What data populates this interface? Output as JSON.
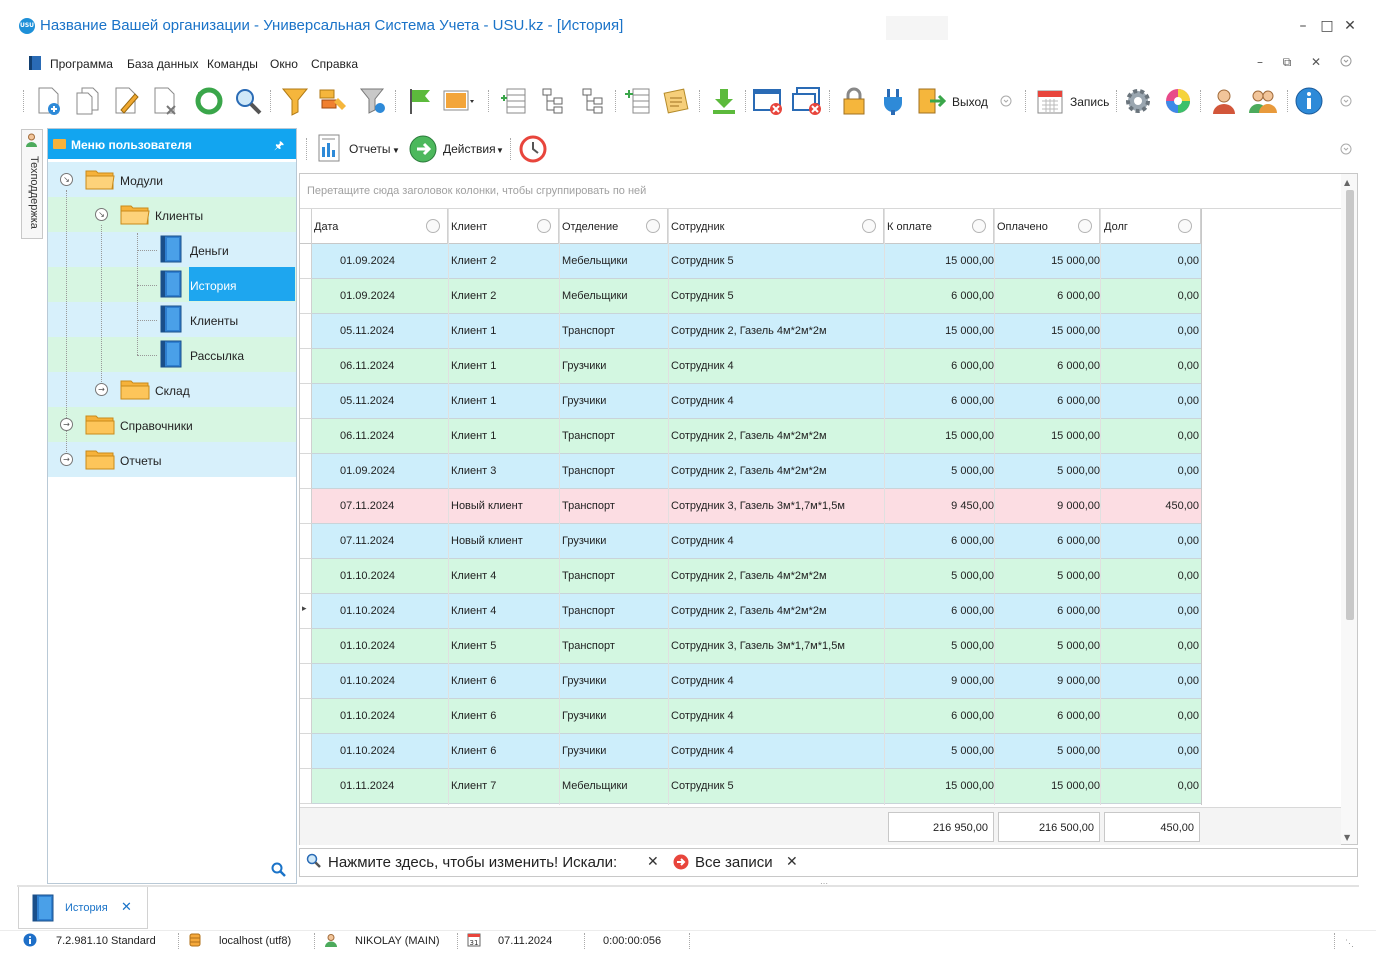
{
  "window": {
    "title": "Название Вашей организации - Универсальная Система Учета - USU.kz - [История]",
    "logo_text": "USU"
  },
  "menu": {
    "items": [
      "Программа",
      "База данных",
      "Команды",
      "Окно",
      "Справка"
    ]
  },
  "toolbar": {
    "exit_label": "Выход",
    "record_label": "Запись"
  },
  "side_tab": {
    "label": "Техподдержка"
  },
  "nav": {
    "title": "Меню пользователя",
    "items": [
      {
        "label": "Модули"
      },
      {
        "label": "Клиенты"
      },
      {
        "label": "Деньги"
      },
      {
        "label": "История"
      },
      {
        "label": "Клиенты"
      },
      {
        "label": "Рассылка"
      },
      {
        "label": "Склад"
      },
      {
        "label": "Справочники"
      },
      {
        "label": "Отчеты"
      }
    ]
  },
  "subbar": {
    "reports_label": "Отчеты",
    "actions_label": "Действия"
  },
  "grid": {
    "group_hint": "Перетащите сюда заголовок колонки, чтобы сгруппировать по ней",
    "columns": [
      "Дата",
      "Клиент",
      "Отделение",
      "Сотрудник",
      "К оплате",
      "Оплачено",
      "Долг"
    ],
    "rows": [
      {
        "date": "01.09.2024",
        "client": "Клиент 2",
        "dept": "Мебельщики",
        "employee": "Сотрудник 5",
        "due": "15 000,00",
        "paid": "15 000,00",
        "debt": "0,00",
        "color": "#cdeefb"
      },
      {
        "date": "01.09.2024",
        "client": "Клиент 2",
        "dept": "Мебельщики",
        "employee": "Сотрудник 5",
        "due": "6 000,00",
        "paid": "6 000,00",
        "debt": "0,00",
        "color": "#d3f7e1"
      },
      {
        "date": "05.11.2024",
        "client": "Клиент 1",
        "dept": "Транспорт",
        "employee": "Сотрудник 2, Газель 4м*2м*2м",
        "due": "15 000,00",
        "paid": "15 000,00",
        "debt": "0,00",
        "color": "#cdeefb"
      },
      {
        "date": "06.11.2024",
        "client": "Клиент 1",
        "dept": "Грузчики",
        "employee": "Сотрудник 4",
        "due": "6 000,00",
        "paid": "6 000,00",
        "debt": "0,00",
        "color": "#d3f7e1"
      },
      {
        "date": "05.11.2024",
        "client": "Клиент 1",
        "dept": "Грузчики",
        "employee": "Сотрудник 4",
        "due": "6 000,00",
        "paid": "6 000,00",
        "debt": "0,00",
        "color": "#cdeefb"
      },
      {
        "date": "06.11.2024",
        "client": "Клиент 1",
        "dept": "Транспорт",
        "employee": "Сотрудник 2, Газель 4м*2м*2м",
        "due": "15 000,00",
        "paid": "15 000,00",
        "debt": "0,00",
        "color": "#d3f7e1"
      },
      {
        "date": "01.09.2024",
        "client": "Клиент 3",
        "dept": "Транспорт",
        "employee": "Сотрудник 2, Газель 4м*2м*2м",
        "due": "5 000,00",
        "paid": "5 000,00",
        "debt": "0,00",
        "color": "#cdeefb"
      },
      {
        "date": "07.11.2024",
        "client": "Новый клиент",
        "dept": "Транспорт",
        "employee": "Сотрудник 3, Газель 3м*1,7м*1,5м",
        "due": "9 450,00",
        "paid": "9 000,00",
        "debt": "450,00",
        "color": "#fcdde3"
      },
      {
        "date": "07.11.2024",
        "client": "Новый клиент",
        "dept": "Грузчики",
        "employee": "Сотрудник 4",
        "due": "6 000,00",
        "paid": "6 000,00",
        "debt": "0,00",
        "color": "#cdeefb"
      },
      {
        "date": "01.10.2024",
        "client": "Клиент 4",
        "dept": "Транспорт",
        "employee": "Сотрудник 2, Газель 4м*2м*2м",
        "due": "5 000,00",
        "paid": "5 000,00",
        "debt": "0,00",
        "color": "#d3f7e1"
      },
      {
        "date": "01.10.2024",
        "client": "Клиент 4",
        "dept": "Транспорт",
        "employee": "Сотрудник 2, Газель 4м*2м*2м",
        "due": "6 000,00",
        "paid": "6 000,00",
        "debt": "0,00",
        "color": "#cdeefb"
      },
      {
        "date": "01.10.2024",
        "client": "Клиент 5",
        "dept": "Транспорт",
        "employee": "Сотрудник 3, Газель 3м*1,7м*1,5м",
        "due": "5 000,00",
        "paid": "5 000,00",
        "debt": "0,00",
        "color": "#d3f7e1"
      },
      {
        "date": "01.10.2024",
        "client": "Клиент 6",
        "dept": "Грузчики",
        "employee": "Сотрудник 4",
        "due": "9 000,00",
        "paid": "9 000,00",
        "debt": "0,00",
        "color": "#cdeefb"
      },
      {
        "date": "01.10.2024",
        "client": "Клиент 6",
        "dept": "Грузчики",
        "employee": "Сотрудник 4",
        "due": "6 000,00",
        "paid": "6 000,00",
        "debt": "0,00",
        "color": "#d3f7e1"
      },
      {
        "date": "01.10.2024",
        "client": "Клиент 6",
        "dept": "Грузчики",
        "employee": "Сотрудник 4",
        "due": "5 000,00",
        "paid": "5 000,00",
        "debt": "0,00",
        "color": "#cdeefb"
      },
      {
        "date": "01.11.2024",
        "client": "Клиент 7",
        "dept": "Мебельщики",
        "employee": "Сотрудник 5",
        "due": "15 000,00",
        "paid": "15 000,00",
        "debt": "0,00",
        "color": "#d3f7e1"
      }
    ],
    "totals": {
      "due": "216 950,00",
      "paid": "216 500,00",
      "debt": "450,00"
    }
  },
  "filter": {
    "prompt": "Нажмите здесь, чтобы изменить! Искали:",
    "all_records": "Все записи"
  },
  "tabs": {
    "active": "История"
  },
  "status": {
    "version": "7.2.981.10 Standard",
    "db": "localhost (utf8)",
    "user": "NIKOLAY (MAIN)",
    "date": "07.11.2024",
    "timer": "0:00:00:056"
  },
  "colors": {
    "accent": "#12a5f0",
    "title_blue": "#1a73c8",
    "row_blue": "#cdeefb",
    "row_green": "#d3f7e1",
    "row_pink": "#fcdde3"
  }
}
